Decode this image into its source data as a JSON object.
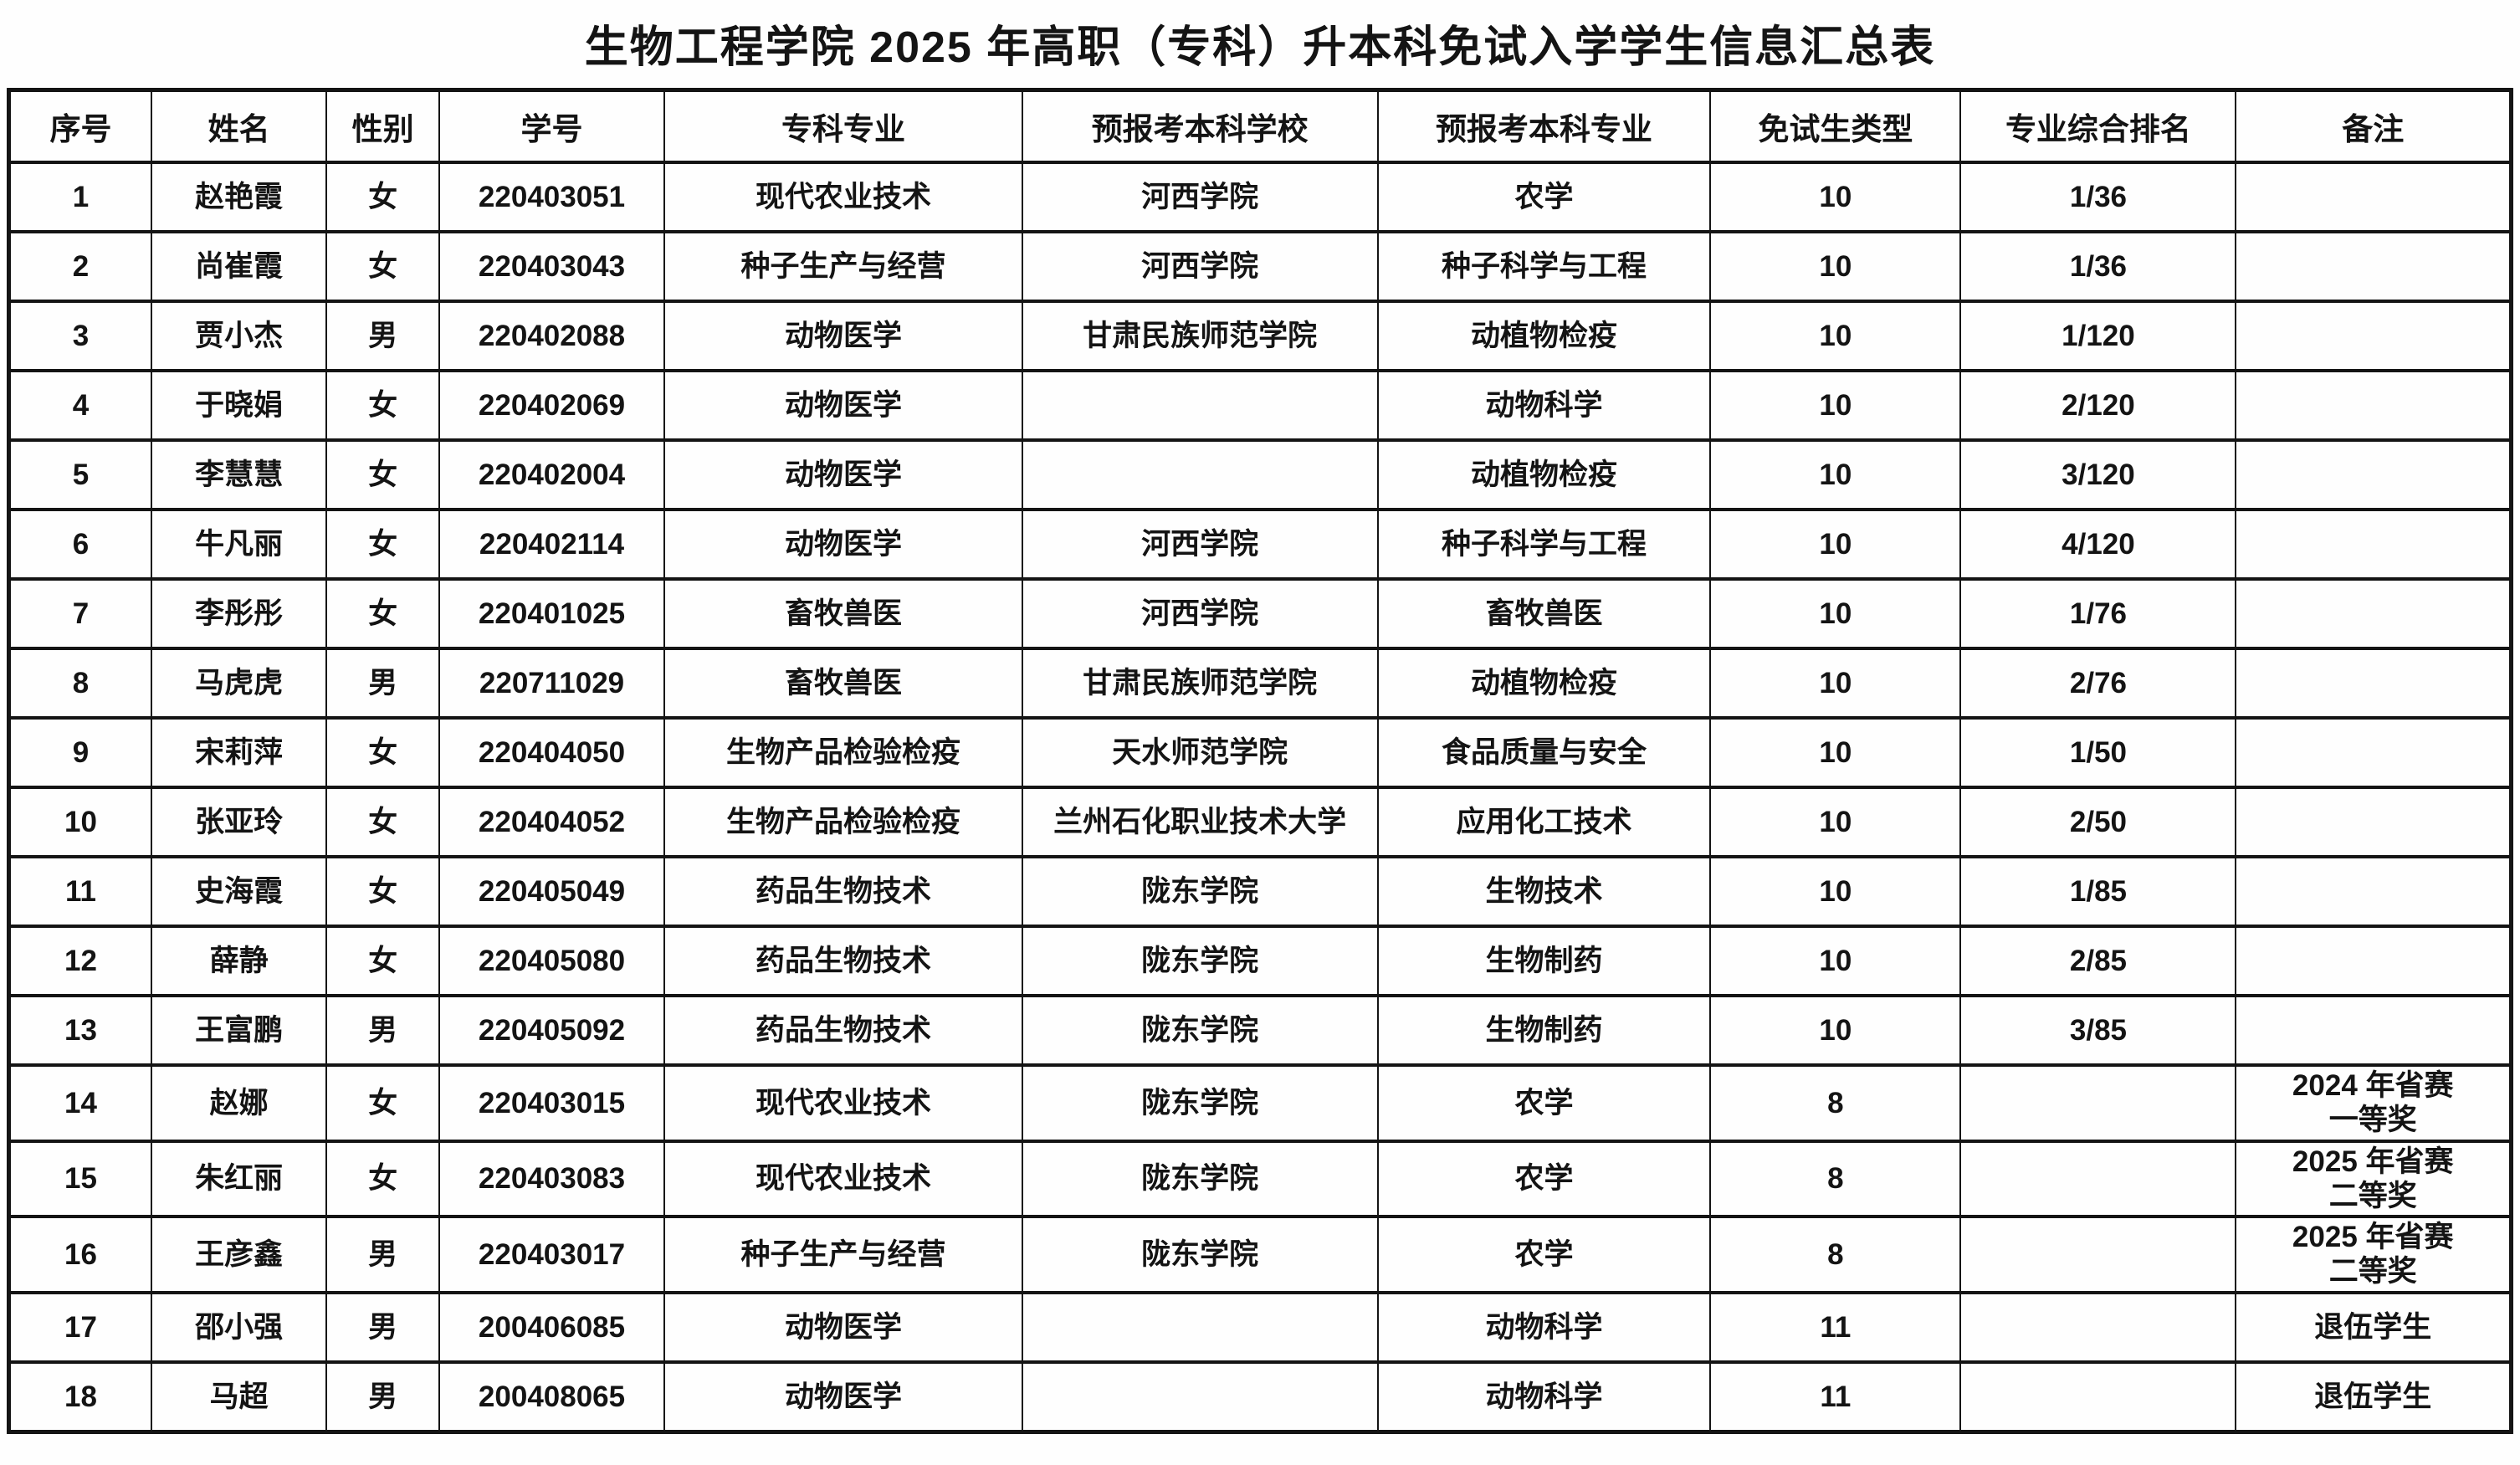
{
  "document": {
    "title": "生物工程学院 2025 年高职（专科）升本科免试入学学生信息汇总表"
  },
  "table": {
    "headers": [
      "序号",
      "姓名",
      "性别",
      "学号",
      "专科专业",
      "预报考本科学校",
      "预报考本科专业",
      "免试生类型",
      "专业综合排名",
      "备注"
    ],
    "rows": [
      [
        "1",
        "赵艳霞",
        "女",
        "220403051",
        "现代农业技术",
        "河西学院",
        "农学",
        "10",
        "1/36",
        ""
      ],
      [
        "2",
        "尚崔霞",
        "女",
        "220403043",
        "种子生产与经营",
        "河西学院",
        "种子科学与工程",
        "10",
        "1/36",
        ""
      ],
      [
        "3",
        "贾小杰",
        "男",
        "220402088",
        "动物医学",
        "甘肃民族师范学院",
        "动植物检疫",
        "10",
        "1/120",
        ""
      ],
      [
        "4",
        "于晓娟",
        "女",
        "220402069",
        "动物医学",
        "",
        "动物科学",
        "10",
        "2/120",
        ""
      ],
      [
        "5",
        "李慧慧",
        "女",
        "220402004",
        "动物医学",
        "",
        "动植物检疫",
        "10",
        "3/120",
        ""
      ],
      [
        "6",
        "牛凡丽",
        "女",
        "220402114",
        "动物医学",
        "河西学院",
        "种子科学与工程",
        "10",
        "4/120",
        ""
      ],
      [
        "7",
        "李彤彤",
        "女",
        "220401025",
        "畜牧兽医",
        "河西学院",
        "畜牧兽医",
        "10",
        "1/76",
        ""
      ],
      [
        "8",
        "马虎虎",
        "男",
        "220711029",
        "畜牧兽医",
        "甘肃民族师范学院",
        "动植物检疫",
        "10",
        "2/76",
        ""
      ],
      [
        "9",
        "宋莉萍",
        "女",
        "220404050",
        "生物产品检验检疫",
        "天水师范学院",
        "食品质量与安全",
        "10",
        "1/50",
        ""
      ],
      [
        "10",
        "张亚玲",
        "女",
        "220404052",
        "生物产品检验检疫",
        "兰州石化职业技术大学",
        "应用化工技术",
        "10",
        "2/50",
        ""
      ],
      [
        "11",
        "史海霞",
        "女",
        "220405049",
        "药品生物技术",
        "陇东学院",
        "生物技术",
        "10",
        "1/85",
        ""
      ],
      [
        "12",
        "薛静",
        "女",
        "220405080",
        "药品生物技术",
        "陇东学院",
        "生物制药",
        "10",
        "2/85",
        ""
      ],
      [
        "13",
        "王富鹏",
        "男",
        "220405092",
        "药品生物技术",
        "陇东学院",
        "生物制药",
        "10",
        "3/85",
        ""
      ],
      [
        "14",
        "赵娜",
        "女",
        "220403015",
        "现代农业技术",
        "陇东学院",
        "农学",
        "8",
        "",
        "2024 年省赛\n一等奖"
      ],
      [
        "15",
        "朱红丽",
        "女",
        "220403083",
        "现代农业技术",
        "陇东学院",
        "农学",
        "8",
        "",
        "2025 年省赛\n二等奖"
      ],
      [
        "16",
        "王彦鑫",
        "男",
        "220403017",
        "种子生产与经营",
        "陇东学院",
        "农学",
        "8",
        "",
        "2025 年省赛\n二等奖"
      ],
      [
        "17",
        "邵小强",
        "男",
        "200406085",
        "动物医学",
        "",
        "动物科学",
        "11",
        "",
        "退伍学生"
      ],
      [
        "18",
        "马超",
        "男",
        "200408065",
        "动物医学",
        "",
        "动物科学",
        "11",
        "",
        "退伍学生"
      ]
    ]
  }
}
